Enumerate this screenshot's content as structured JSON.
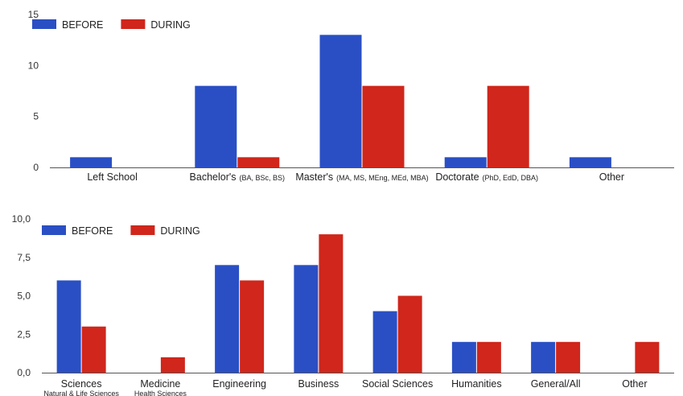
{
  "colors": {
    "before": "#2a4fc4",
    "during": "#d0261b"
  },
  "chart_data": [
    {
      "type": "bar",
      "legend_placement": "top-left",
      "ylim": [
        0,
        15
      ],
      "yticks": [
        0,
        5,
        10,
        15
      ],
      "ytick_labels": [
        "0",
        "5",
        "10",
        "15"
      ],
      "categories": [
        {
          "main": "Left School",
          "sub": ""
        },
        {
          "main": "Bachelor's",
          "sub": "(BA, BSc, BS)"
        },
        {
          "main": "Master's",
          "sub": "(MA, MS, MEng, MEd, MBA)"
        },
        {
          "main": "Doctorate",
          "sub": "(PhD, EdD, DBA)"
        },
        {
          "main": "Other",
          "sub": ""
        }
      ],
      "series": [
        {
          "name": "BEFORE",
          "values": [
            1,
            8,
            13,
            1,
            1
          ]
        },
        {
          "name": "DURING",
          "values": [
            0,
            1,
            8,
            8,
            0
          ]
        }
      ],
      "grid": false
    },
    {
      "type": "bar",
      "legend_placement": "top-left",
      "ylim": [
        0,
        10
      ],
      "yticks": [
        0,
        2.5,
        5,
        7.5,
        10
      ],
      "ytick_labels": [
        "0,0",
        "2,5",
        "5,0",
        "7,5",
        "10,0"
      ],
      "categories": [
        {
          "main": "Sciences",
          "sub": "Natural & Life Sciences"
        },
        {
          "main": "Medicine",
          "sub": "Health Sciences"
        },
        {
          "main": "Engineering",
          "sub": ""
        },
        {
          "main": "Business",
          "sub": ""
        },
        {
          "main": "Social Sciences",
          "sub": ""
        },
        {
          "main": "Humanities",
          "sub": ""
        },
        {
          "main": "General/All",
          "sub": ""
        },
        {
          "main": "Other",
          "sub": ""
        }
      ],
      "series": [
        {
          "name": "BEFORE",
          "values": [
            6,
            0,
            7,
            7,
            4,
            2,
            2,
            0
          ]
        },
        {
          "name": "DURING",
          "values": [
            3,
            1,
            6,
            9,
            5,
            2,
            2,
            2
          ]
        }
      ],
      "grid": false
    }
  ]
}
